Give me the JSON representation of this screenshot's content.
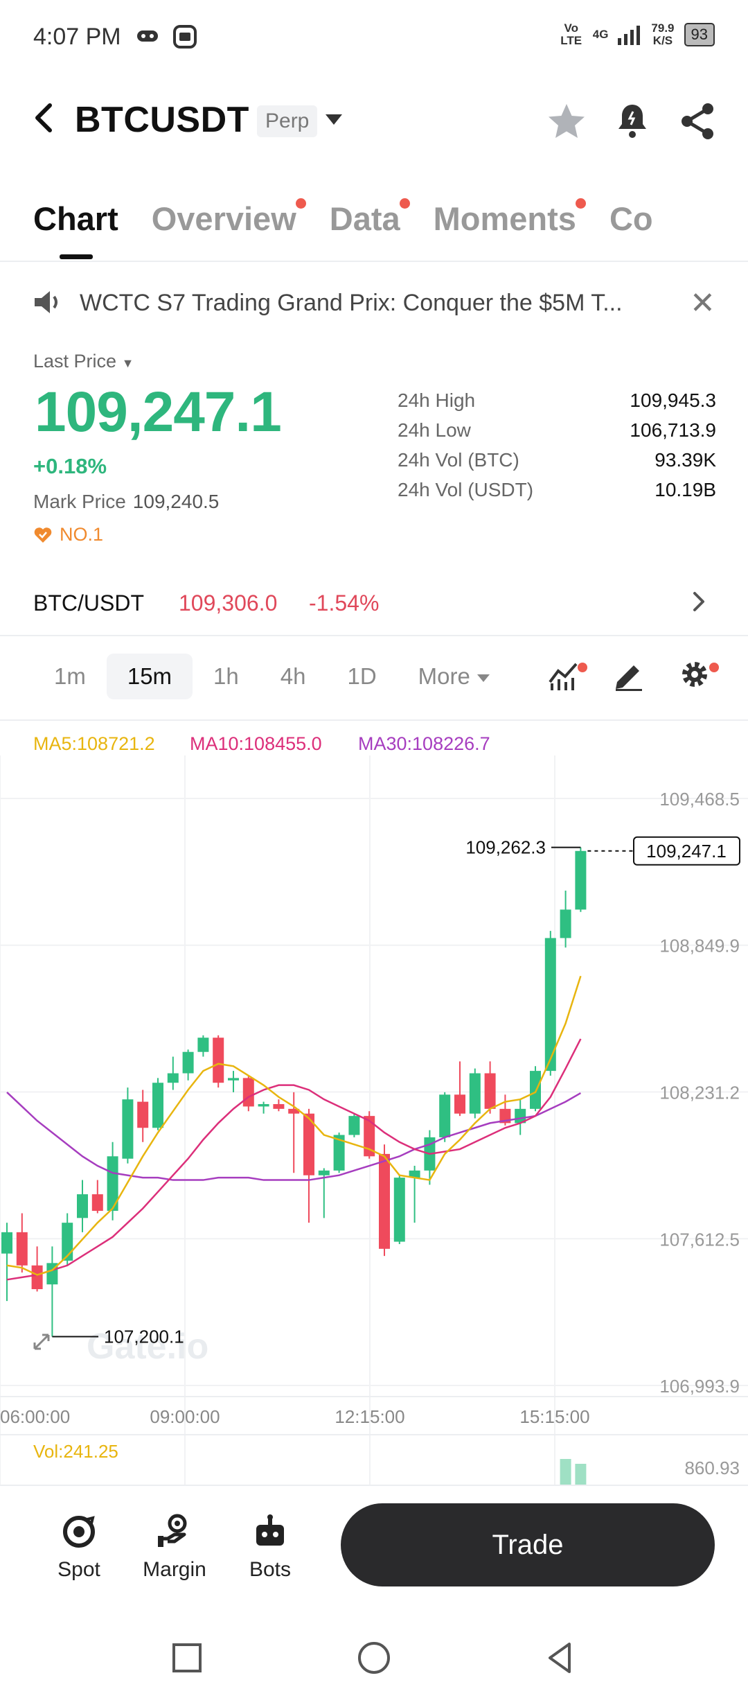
{
  "status_bar": {
    "time": "4:07 PM",
    "volte": "Vo LTE",
    "network": "4G",
    "speed_value": "79.9",
    "speed_unit": "K/S",
    "battery": "93"
  },
  "header": {
    "symbol": "BTCUSDT",
    "contract_type": "Perp"
  },
  "tabs": [
    {
      "label": "Chart",
      "active": true,
      "dot": false
    },
    {
      "label": "Overview",
      "active": false,
      "dot": true
    },
    {
      "label": "Data",
      "active": false,
      "dot": true
    },
    {
      "label": "Moments",
      "active": false,
      "dot": true
    },
    {
      "label": "Co",
      "active": false,
      "dot": false
    }
  ],
  "announcement": {
    "text": "WCTC S7 Trading Grand Prix: Conquer the $5M T..."
  },
  "price": {
    "label": "Last Price",
    "last": "109,247.1",
    "change": "+0.18%",
    "mark_label": "Mark Price",
    "mark_value": "109,240.5",
    "rank": "NO.1"
  },
  "stats": [
    {
      "label": "24h High",
      "value": "109,945.3"
    },
    {
      "label": "24h Low",
      "value": "106,713.9"
    },
    {
      "label": "24h Vol (BTC)",
      "value": "93.39K"
    },
    {
      "label": "24h Vol (USDT)",
      "value": "10.19B"
    }
  ],
  "spot": {
    "pair": "BTC/USDT",
    "price": "109,306.0",
    "change": "-1.54%"
  },
  "intervals": {
    "items": [
      "1m",
      "15m",
      "1h",
      "4h",
      "1D"
    ],
    "active": "15m",
    "more": "More"
  },
  "ma": {
    "ma5": "MA5:108721.2",
    "ma10": "MA10:108455.0",
    "ma30": "MA30:108226.7",
    "colors": {
      "ma5": "#e8b50f",
      "ma10": "#dc2f7a",
      "ma30": "#a63dbf"
    }
  },
  "chart_data": {
    "type": "candlestick",
    "y_ticks": [
      "109,468.5",
      "108,849.9",
      "108,231.2",
      "107,612.5",
      "106,993.9"
    ],
    "y_tick_values": [
      109468.5,
      108849.9,
      108231.2,
      107612.5,
      106993.9
    ],
    "x_ticks": [
      "06:00:00",
      "09:00:00",
      "12:15:00",
      "15:15:00"
    ],
    "max_label": "109,262.3",
    "min_label": "107,200.1",
    "current_label": "109,247.1",
    "watermark": "Gate.io",
    "colors": {
      "up": "#2fbf82",
      "down": "#ef4a5c"
    },
    "candles": [
      {
        "o": 107550,
        "h": 107680,
        "l": 107350,
        "c": 107640
      },
      {
        "o": 107640,
        "h": 107720,
        "l": 107470,
        "c": 107500
      },
      {
        "o": 107500,
        "h": 107580,
        "l": 107390,
        "c": 107400
      },
      {
        "o": 107420,
        "h": 107580,
        "l": 107200,
        "c": 107510
      },
      {
        "o": 107520,
        "h": 107720,
        "l": 107500,
        "c": 107680
      },
      {
        "o": 107700,
        "h": 107860,
        "l": 107640,
        "c": 107800
      },
      {
        "o": 107800,
        "h": 107860,
        "l": 107720,
        "c": 107730
      },
      {
        "o": 107730,
        "h": 108020,
        "l": 107690,
        "c": 107960
      },
      {
        "o": 107950,
        "h": 108250,
        "l": 107930,
        "c": 108200
      },
      {
        "o": 108190,
        "h": 108240,
        "l": 108020,
        "c": 108080
      },
      {
        "o": 108080,
        "h": 108290,
        "l": 108070,
        "c": 108270
      },
      {
        "o": 108270,
        "h": 108380,
        "l": 108240,
        "c": 108310
      },
      {
        "o": 108310,
        "h": 108410,
        "l": 108280,
        "c": 108400
      },
      {
        "o": 108400,
        "h": 108470,
        "l": 108380,
        "c": 108460
      },
      {
        "o": 108460,
        "h": 108470,
        "l": 108250,
        "c": 108270
      },
      {
        "o": 108280,
        "h": 108320,
        "l": 108230,
        "c": 108290
      },
      {
        "o": 108290,
        "h": 108300,
        "l": 108150,
        "c": 108170
      },
      {
        "o": 108170,
        "h": 108190,
        "l": 108140,
        "c": 108180
      },
      {
        "o": 108180,
        "h": 108200,
        "l": 108150,
        "c": 108160
      },
      {
        "o": 108160,
        "h": 108230,
        "l": 107890,
        "c": 108140
      },
      {
        "o": 108140,
        "h": 108160,
        "l": 107680,
        "c": 107880
      },
      {
        "o": 107880,
        "h": 107910,
        "l": 107700,
        "c": 107900
      },
      {
        "o": 107900,
        "h": 108060,
        "l": 107890,
        "c": 108050
      },
      {
        "o": 108050,
        "h": 108140,
        "l": 108040,
        "c": 108130
      },
      {
        "o": 108130,
        "h": 108150,
        "l": 107950,
        "c": 107960
      },
      {
        "o": 107970,
        "h": 108010,
        "l": 107540,
        "c": 107570
      },
      {
        "o": 107600,
        "h": 107880,
        "l": 107590,
        "c": 107870
      },
      {
        "o": 107870,
        "h": 107920,
        "l": 107680,
        "c": 107900
      },
      {
        "o": 107900,
        "h": 108070,
        "l": 107840,
        "c": 108040
      },
      {
        "o": 108040,
        "h": 108230,
        "l": 108020,
        "c": 108220
      },
      {
        "o": 108220,
        "h": 108360,
        "l": 108130,
        "c": 108140
      },
      {
        "o": 108140,
        "h": 108330,
        "l": 108120,
        "c": 108310
      },
      {
        "o": 108310,
        "h": 108360,
        "l": 108140,
        "c": 108160
      },
      {
        "o": 108160,
        "h": 108220,
        "l": 108090,
        "c": 108100
      },
      {
        "o": 108100,
        "h": 108200,
        "l": 108050,
        "c": 108160
      },
      {
        "o": 108160,
        "h": 108340,
        "l": 108150,
        "c": 108320
      },
      {
        "o": 108320,
        "h": 108910,
        "l": 108300,
        "c": 108880
      },
      {
        "o": 108880,
        "h": 109080,
        "l": 108840,
        "c": 109000
      },
      {
        "o": 109000,
        "h": 109262.3,
        "l": 108990,
        "c": 109247.1
      }
    ],
    "ma5": [
      107500,
      107490,
      107460,
      107480,
      107540,
      107610,
      107680,
      107740,
      107850,
      107960,
      108060,
      108150,
      108240,
      108320,
      108350,
      108340,
      108300,
      108260,
      108210,
      108170,
      108120,
      108050,
      108030,
      108010,
      107990,
      107960,
      107880,
      107870,
      107860,
      107970,
      108030,
      108100,
      108160,
      108190,
      108200,
      108230,
      108370,
      108520,
      108720
    ],
    "ma10": [
      107440,
      107450,
      107460,
      107480,
      107500,
      107540,
      107580,
      107620,
      107680,
      107740,
      107810,
      107880,
      107950,
      108030,
      108100,
      108160,
      108210,
      108240,
      108260,
      108260,
      108240,
      108200,
      108170,
      108140,
      108110,
      108060,
      108020,
      107990,
      107970,
      107980,
      107990,
      108020,
      108050,
      108080,
      108100,
      108130,
      108210,
      108330,
      108455
    ],
    "ma30": [
      108230,
      108170,
      108110,
      108060,
      108010,
      107960,
      107920,
      107890,
      107880,
      107870,
      107870,
      107860,
      107860,
      107860,
      107870,
      107870,
      107870,
      107860,
      107860,
      107860,
      107860,
      107870,
      107880,
      107900,
      107920,
      107940,
      107960,
      107990,
      108010,
      108040,
      108060,
      108080,
      108100,
      108110,
      108120,
      108130,
      108160,
      108190,
      108226.7
    ]
  },
  "volume": {
    "label": "Vol:241.25",
    "max_value": "860.93"
  },
  "bottom_bar": {
    "spot": "Spot",
    "margin": "Margin",
    "bots": "Bots",
    "trade": "Trade"
  }
}
